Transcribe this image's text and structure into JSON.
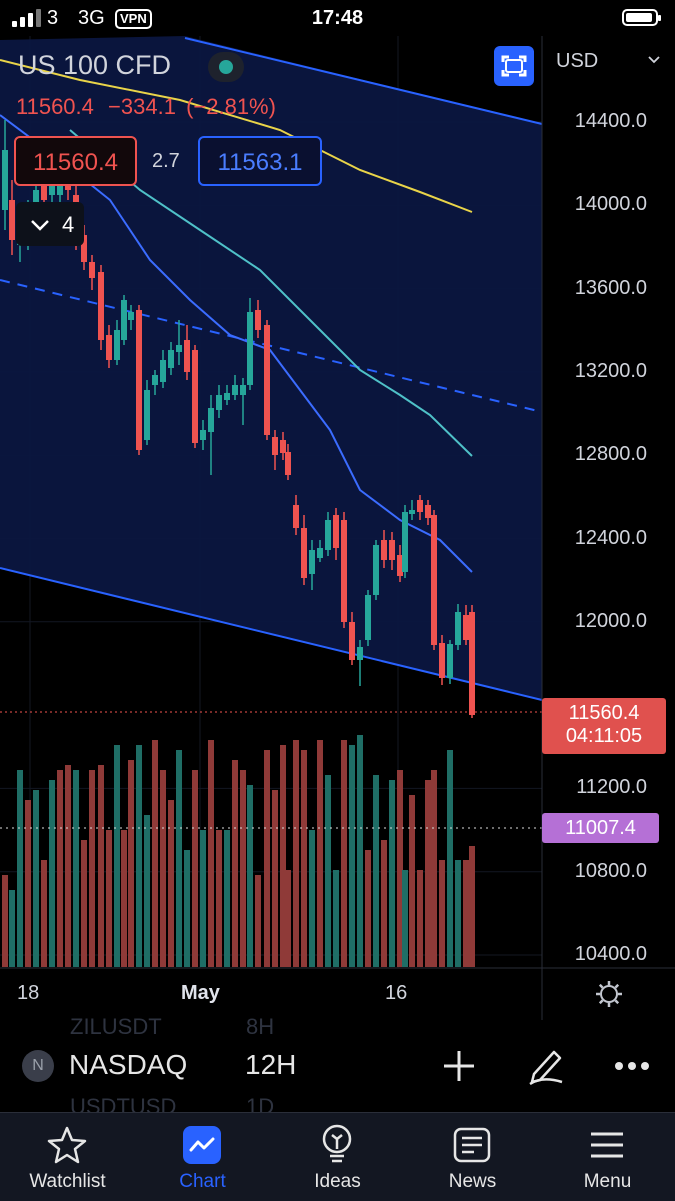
{
  "status_bar": {
    "carrier_bars": "3",
    "network": "3G",
    "vpn": "VPN",
    "time": "17:48"
  },
  "chart": {
    "symbol_title": "US 100 CFD",
    "last_price": "11560.4",
    "change": "−334.1",
    "change_pct": "(−2.81%)",
    "bid": "11560.4",
    "spread": "2.7",
    "ask": "11563.1",
    "indicators_count": "4",
    "currency": "USD",
    "price_ticks": [
      "14400.0",
      "14000.0",
      "13600.0",
      "13200.0",
      "12800.0",
      "12400.0",
      "12000.0",
      "11200.0",
      "10800.0",
      "10400.0"
    ],
    "current_price_label": "11560.4",
    "countdown": "04:11:05",
    "marker_price_label": "11007.4",
    "date_ticks": [
      "18",
      "May",
      "16"
    ],
    "colors": {
      "up": "#26a69a",
      "down": "#ef5350",
      "channel": "#2962ff",
      "ema_yellow": "#e9d449",
      "ema_teal": "#4fc1c8",
      "ema_blue": "#3b6cff",
      "marker": "#b570d6"
    }
  },
  "toolbar": {
    "exchange_badge": "N",
    "exchange": "NASDAQ",
    "interval": "12H",
    "ghost_top_symbol": "ZILUSDT",
    "ghost_top_interval": "8H",
    "ghost_bottom_symbol": "USDTUSD",
    "ghost_bottom_interval": "1D"
  },
  "tabs": [
    {
      "label": "Watchlist",
      "icon": "star-icon",
      "active": false
    },
    {
      "label": "Chart",
      "icon": "chart-icon",
      "active": true
    },
    {
      "label": "Ideas",
      "icon": "lightbulb-icon",
      "active": false
    },
    {
      "label": "News",
      "icon": "newspaper-icon",
      "active": false
    },
    {
      "label": "Menu",
      "icon": "hamburger-icon",
      "active": false
    }
  ]
}
